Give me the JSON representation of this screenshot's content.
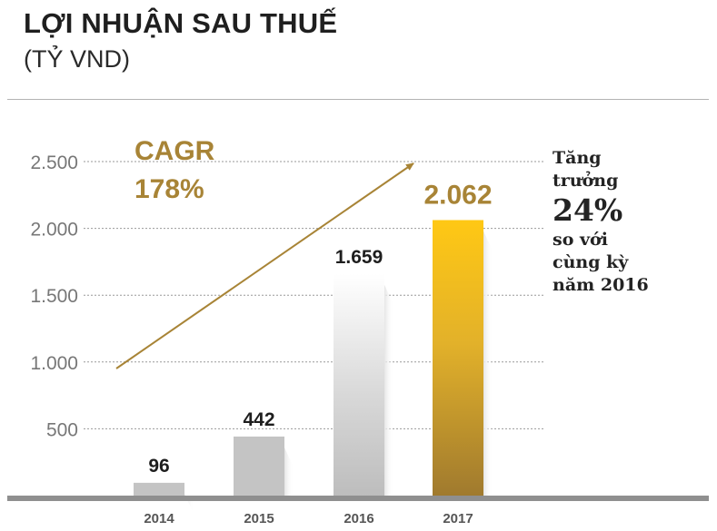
{
  "header": {
    "title": "LỢI NHUẬN SAU THUẾ",
    "subtitle": "(TỶ VND)"
  },
  "colors": {
    "gold": "#a88436",
    "bar_gray": "#c4c4c4",
    "bar_gold_top": "#ffc814",
    "bar_gold_bottom": "#a07a2e",
    "axis": "#999999"
  },
  "annotation": {
    "cagr_label": "CAGR",
    "cagr_value": "178%"
  },
  "side_note": {
    "line1": "Tăng",
    "line2": "trưởng",
    "line3": "24%",
    "line4": "so với",
    "line5": "cùng kỳ",
    "line6": "năm 2016"
  },
  "chart_data": {
    "type": "bar",
    "categories": [
      "2014",
      "2015",
      "2016",
      "2017"
    ],
    "values": [
      96,
      442,
      1659,
      2062
    ],
    "value_labels": [
      "96",
      "442",
      "1.659",
      "2.062"
    ],
    "title": "LỢI NHUẬN SAU THUẾ",
    "subtitle": "(TỶ VND)",
    "ylim": [
      0,
      2500
    ],
    "yticks": [
      500,
      1000,
      1500,
      2000,
      2500
    ],
    "ytick_labels": [
      "500",
      "1.000",
      "1.500",
      "2.000",
      "2.500"
    ],
    "grid": true,
    "highlight_index": 3
  }
}
